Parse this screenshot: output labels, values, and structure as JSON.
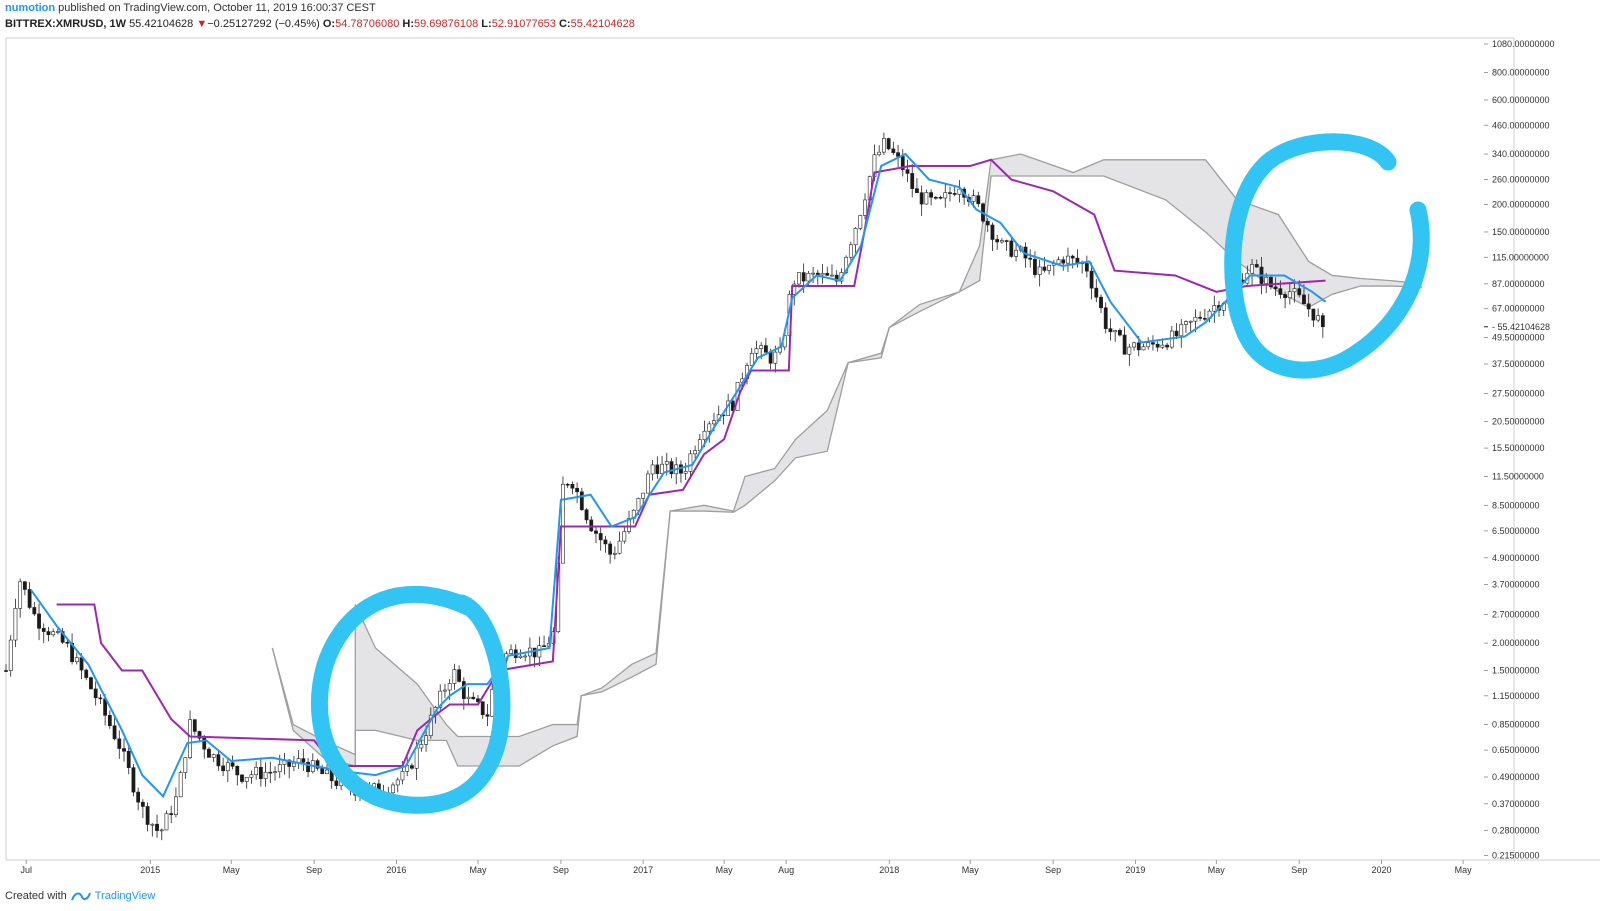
{
  "header": {
    "author": "numotion",
    "published_text": "published on TradingView.com, October 11, 2019 16:00:37 CEST",
    "symbol": "BITTREX:XMRUSD, 1W",
    "last": "55.42104628",
    "change_arrow": "▼",
    "change": "−0.25127292 (−0.45%)",
    "open_label": "O:",
    "open": "54.78706080",
    "high_label": "H:",
    "high": "59.69876108",
    "low_label": "L:",
    "low": "52.91077653",
    "close_label": "C:",
    "close": "55.42104628"
  },
  "footer": {
    "created_with": "Created with",
    "brand": "TradingView"
  },
  "colors": {
    "tenkan": "#2196f3",
    "kijun": "#9c27b0",
    "cloud_line": "#9e9e9e",
    "cloud_fill": "#e4e4e6",
    "marker": "#32c5f4",
    "bull": "#ffffff",
    "bear": "#1a1a1a"
  },
  "chart_data": {
    "type": "candlestick",
    "indicator": "Ichimoku Cloud",
    "scale": "log",
    "x_range": [
      "2014-06-01",
      "2020-06-01"
    ],
    "ylim": [
      0.205,
      1150
    ],
    "x_ticks": [
      {
        "date": "2014-07-01",
        "label": "Jul"
      },
      {
        "date": "2015-01-01",
        "label": "2015"
      },
      {
        "date": "2015-05-01",
        "label": "May"
      },
      {
        "date": "2015-09-01",
        "label": "Sep"
      },
      {
        "date": "2016-01-01",
        "label": "2016"
      },
      {
        "date": "2016-05-01",
        "label": "May"
      },
      {
        "date": "2016-09-01",
        "label": "Sep"
      },
      {
        "date": "2017-01-01",
        "label": "2017"
      },
      {
        "date": "2017-05-01",
        "label": "May"
      },
      {
        "date": "2017-08-01",
        "label": "Aug"
      },
      {
        "date": "2018-01-01",
        "label": "2018"
      },
      {
        "date": "2018-05-01",
        "label": "May"
      },
      {
        "date": "2018-09-01",
        "label": "Sep"
      },
      {
        "date": "2019-01-01",
        "label": "2019"
      },
      {
        "date": "2019-05-01",
        "label": "May"
      },
      {
        "date": "2019-09-01",
        "label": "Sep"
      },
      {
        "date": "2020-01-01",
        "label": "2020"
      },
      {
        "date": "2020-05-01",
        "label": "May"
      }
    ],
    "y_ticks": [
      {
        "value": 1080,
        "label": "1080.00000000"
      },
      {
        "value": 800,
        "label": "800.00000000"
      },
      {
        "value": 600,
        "label": "600.00000000"
      },
      {
        "value": 460,
        "label": "460.00000000"
      },
      {
        "value": 340,
        "label": "340.00000000"
      },
      {
        "value": 260,
        "label": "260.00000000"
      },
      {
        "value": 200,
        "label": "200.00000000"
      },
      {
        "value": 150,
        "label": "150.00000000"
      },
      {
        "value": 115,
        "label": "115.00000000"
      },
      {
        "value": 87,
        "label": "87.00000000"
      },
      {
        "value": 67,
        "label": "67.00000000"
      },
      {
        "value": 49.5,
        "label": "49.50000000"
      },
      {
        "value": 37.5,
        "label": "37.50000000"
      },
      {
        "value": 27.5,
        "label": "27.50000000"
      },
      {
        "value": 20.5,
        "label": "20.50000000"
      },
      {
        "value": 15.5,
        "label": "15.50000000"
      },
      {
        "value": 11.5,
        "label": "11.50000000"
      },
      {
        "value": 8.5,
        "label": "8.50000000"
      },
      {
        "value": 6.5,
        "label": "6.50000000"
      },
      {
        "value": 4.9,
        "label": "4.90000000"
      },
      {
        "value": 3.7,
        "label": "3.70000000"
      },
      {
        "value": 2.7,
        "label": "2.70000000"
      },
      {
        "value": 2.0,
        "label": "2.00000000"
      },
      {
        "value": 1.5,
        "label": "1.50000000"
      },
      {
        "value": 1.15,
        "label": "1.15000000"
      },
      {
        "value": 0.85,
        "label": "0.85000000"
      },
      {
        "value": 0.65,
        "label": "0.65000000"
      },
      {
        "value": 0.49,
        "label": "0.49000000"
      },
      {
        "value": 0.37,
        "label": "0.37000000"
      },
      {
        "value": 0.28,
        "label": "0.28000000"
      },
      {
        "value": 0.215,
        "label": "0.21500000"
      }
    ],
    "last_price_label": "55.42104628",
    "last_price": 55.42,
    "price_path": [
      [
        "2014-06-01",
        1.5
      ],
      [
        "2014-06-20",
        4.0
      ],
      [
        "2014-07-15",
        2.6
      ],
      [
        "2014-09-01",
        1.9
      ],
      [
        "2014-10-15",
        1.1
      ],
      [
        "2014-11-15",
        0.7
      ],
      [
        "2014-12-20",
        0.35
      ],
      [
        "2015-01-15",
        0.27
      ],
      [
        "2015-02-10",
        0.4
      ],
      [
        "2015-03-01",
        0.85
      ],
      [
        "2015-04-01",
        0.62
      ],
      [
        "2015-05-15",
        0.5
      ],
      [
        "2015-07-01",
        0.52
      ],
      [
        "2015-08-15",
        0.58
      ],
      [
        "2015-09-15",
        0.5
      ],
      [
        "2015-10-15",
        0.45
      ],
      [
        "2015-11-15",
        0.42
      ],
      [
        "2015-12-15",
        0.44
      ],
      [
        "2016-01-15",
        0.5
      ],
      [
        "2016-02-10",
        0.75
      ],
      [
        "2016-03-10",
        1.2
      ],
      [
        "2016-03-25",
        1.5
      ],
      [
        "2016-04-15",
        1.1
      ],
      [
        "2016-05-15",
        0.95
      ],
      [
        "2016-06-01",
        1.7
      ],
      [
        "2016-07-01",
        1.9
      ],
      [
        "2016-08-01",
        1.8
      ],
      [
        "2016-08-25",
        2.3
      ],
      [
        "2016-09-01",
        10.0
      ],
      [
        "2016-09-15",
        11.5
      ],
      [
        "2016-10-15",
        7.0
      ],
      [
        "2016-11-15",
        5.0
      ],
      [
        "2016-12-20",
        8.0
      ],
      [
        "2017-01-15",
        13.0
      ],
      [
        "2017-03-01",
        12.0
      ],
      [
        "2017-04-01",
        20.0
      ],
      [
        "2017-05-15",
        25.0
      ],
      [
        "2017-06-10",
        45.0
      ],
      [
        "2017-07-10",
        40.0
      ],
      [
        "2017-07-25",
        42.0
      ],
      [
        "2017-08-10",
        90.0
      ],
      [
        "2017-09-15",
        95.0
      ],
      [
        "2017-10-15",
        90.0
      ],
      [
        "2017-11-15",
        170.0
      ],
      [
        "2017-12-10",
        320.0
      ],
      [
        "2017-12-25",
        380.0
      ],
      [
        "2018-01-20",
        300.0
      ],
      [
        "2018-02-10",
        220.0
      ],
      [
        "2018-03-15",
        200.0
      ],
      [
        "2018-04-15",
        250.0
      ],
      [
        "2018-05-15",
        190.0
      ],
      [
        "2018-06-15",
        130.0
      ],
      [
        "2018-07-15",
        120.0
      ],
      [
        "2018-08-15",
        95.0
      ],
      [
        "2018-09-15",
        115.0
      ],
      [
        "2018-10-20",
        105.0
      ],
      [
        "2018-11-20",
        55.0
      ],
      [
        "2018-12-15",
        45.0
      ],
      [
        "2019-01-20",
        45.0
      ],
      [
        "2019-03-01",
        50.0
      ],
      [
        "2019-04-15",
        65.0
      ],
      [
        "2019-05-15",
        75.0
      ],
      [
        "2019-06-20",
        105.0
      ],
      [
        "2019-07-20",
        85.0
      ],
      [
        "2019-08-20",
        80.0
      ],
      [
        "2019-09-20",
        65.0
      ],
      [
        "2019-10-07",
        55.4
      ]
    ],
    "tenkan_sen": [
      [
        "2014-07-08",
        3.5
      ],
      [
        "2014-08-15",
        2.4
      ],
      [
        "2014-10-01",
        1.6
      ],
      [
        "2014-11-20",
        0.8
      ],
      [
        "2014-12-20",
        0.5
      ],
      [
        "2015-01-20",
        0.4
      ],
      [
        "2015-02-25",
        0.7
      ],
      [
        "2015-03-25",
        0.72
      ],
      [
        "2015-05-01",
        0.58
      ],
      [
        "2015-07-01",
        0.6
      ],
      [
        "2015-09-01",
        0.55
      ],
      [
        "2015-10-15",
        0.52
      ],
      [
        "2015-12-01",
        0.5
      ],
      [
        "2016-01-15",
        0.55
      ],
      [
        "2016-03-01",
        1.0
      ],
      [
        "2016-03-20",
        1.15
      ],
      [
        "2016-04-15",
        1.3
      ],
      [
        "2016-05-15",
        1.3
      ],
      [
        "2016-06-15",
        1.75
      ],
      [
        "2016-08-15",
        1.9
      ],
      [
        "2016-09-01",
        9.0
      ],
      [
        "2016-10-15",
        9.5
      ],
      [
        "2016-11-15",
        6.8
      ],
      [
        "2016-12-20",
        7.5
      ],
      [
        "2017-02-01",
        12.0
      ],
      [
        "2017-03-15",
        13.0
      ],
      [
        "2017-04-15",
        19.0
      ],
      [
        "2017-05-20",
        28.0
      ],
      [
        "2017-06-20",
        40.0
      ],
      [
        "2017-07-25",
        45.0
      ],
      [
        "2017-08-10",
        75.0
      ],
      [
        "2017-09-15",
        95.0
      ],
      [
        "2017-10-20",
        90.0
      ],
      [
        "2017-11-20",
        130.0
      ],
      [
        "2017-12-20",
        300.0
      ],
      [
        "2018-01-25",
        340.0
      ],
      [
        "2018-03-01",
        260.0
      ],
      [
        "2018-04-15",
        240.0
      ],
      [
        "2018-05-10",
        190.0
      ],
      [
        "2018-06-15",
        165.0
      ],
      [
        "2018-07-20",
        120.0
      ],
      [
        "2018-09-15",
        105.0
      ],
      [
        "2018-10-25",
        110.0
      ],
      [
        "2018-11-25",
        72.0
      ],
      [
        "2019-01-10",
        47.0
      ],
      [
        "2019-03-15",
        50.0
      ],
      [
        "2019-04-15",
        58.0
      ],
      [
        "2019-05-20",
        75.0
      ],
      [
        "2019-06-20",
        95.0
      ],
      [
        "2019-08-10",
        95.0
      ],
      [
        "2019-09-20",
        80.0
      ],
      [
        "2019-10-10",
        72.0
      ]
    ],
    "kijun_sen": [
      [
        "2014-08-15",
        3.0
      ],
      [
        "2014-10-10",
        3.0
      ],
      [
        "2014-10-20",
        2.0
      ],
      [
        "2014-11-20",
        1.5
      ],
      [
        "2014-12-20",
        1.5
      ],
      [
        "2015-02-01",
        0.9
      ],
      [
        "2015-03-01",
        0.75
      ],
      [
        "2015-09-01",
        0.72
      ],
      [
        "2015-10-01",
        0.55
      ],
      [
        "2016-01-10",
        0.55
      ],
      [
        "2016-02-01",
        0.8
      ],
      [
        "2016-03-01",
        0.95
      ],
      [
        "2016-03-20",
        1.05
      ],
      [
        "2016-05-01",
        1.05
      ],
      [
        "2016-06-01",
        1.5
      ],
      [
        "2016-08-20",
        1.65
      ],
      [
        "2016-09-01",
        6.8
      ],
      [
        "2016-12-20",
        6.8
      ],
      [
        "2017-01-10",
        9.5
      ],
      [
        "2017-03-01",
        10.0
      ],
      [
        "2017-04-01",
        14.5
      ],
      [
        "2017-05-01",
        17.0
      ],
      [
        "2017-05-25",
        28.0
      ],
      [
        "2017-06-10",
        35.0
      ],
      [
        "2017-08-05",
        35.0
      ],
      [
        "2017-08-10",
        85.0
      ],
      [
        "2017-11-10",
        85.0
      ],
      [
        "2017-11-25",
        150.0
      ],
      [
        "2017-12-10",
        280.0
      ],
      [
        "2018-02-01",
        300.0
      ],
      [
        "2018-05-01",
        300.0
      ],
      [
        "2018-06-01",
        320.0
      ],
      [
        "2018-07-01",
        260.0
      ],
      [
        "2018-09-01",
        230.0
      ],
      [
        "2018-11-01",
        180.0
      ],
      [
        "2018-12-01",
        100.0
      ],
      [
        "2019-03-01",
        95.0
      ],
      [
        "2019-05-01",
        80.0
      ],
      [
        "2019-06-15",
        85.0
      ],
      [
        "2019-10-10",
        90.0
      ]
    ],
    "cloud": [
      [
        "2015-07-01",
        1.9,
        1.9
      ],
      [
        "2015-08-01",
        0.85,
        0.8
      ],
      [
        "2015-09-15",
        0.72,
        0.6
      ],
      [
        "2015-11-01",
        0.62,
        0.55
      ],
      [
        "2015-11-01",
        3.0,
        0.8
      ],
      [
        "2015-12-01",
        1.9,
        0.8
      ],
      [
        "2016-02-01",
        1.3,
        0.72
      ],
      [
        "2016-03-15",
        0.85,
        0.72
      ],
      [
        "2016-04-01",
        0.75,
        0.55
      ],
      [
        "2016-07-01",
        0.75,
        0.55
      ],
      [
        "2016-08-20",
        0.85,
        0.68
      ],
      [
        "2016-09-25",
        0.85,
        0.75
      ],
      [
        "2016-10-01",
        1.15,
        1.15
      ],
      [
        "2016-11-01",
        1.25,
        1.2
      ],
      [
        "2016-12-15",
        1.6,
        1.4
      ],
      [
        "2017-01-20",
        1.8,
        1.6
      ],
      [
        "2017-02-10",
        8.0,
        8.0
      ],
      [
        "2017-04-01",
        8.5,
        8.0
      ],
      [
        "2017-05-15",
        8.0,
        7.9
      ],
      [
        "2017-06-01",
        11.5,
        8.5
      ],
      [
        "2017-07-15",
        12.5,
        11.0
      ],
      [
        "2017-08-15",
        17.0,
        14.0
      ],
      [
        "2017-10-01",
        23.0,
        15.0
      ],
      [
        "2017-11-01",
        38.0,
        38.0
      ],
      [
        "2017-12-20",
        42.0,
        40.0
      ],
      [
        "2018-01-01",
        55.0,
        55.0
      ],
      [
        "2018-02-15",
        70.0,
        65.0
      ],
      [
        "2018-04-15",
        80.0,
        80.0
      ],
      [
        "2018-05-15",
        130.0,
        90.0
      ],
      [
        "2018-06-01",
        320.0,
        270.0
      ],
      [
        "2018-07-15",
        340.0,
        270.0
      ],
      [
        "2018-10-01",
        280.0,
        270.0
      ],
      [
        "2018-11-15",
        320.0,
        270.0
      ],
      [
        "2019-02-15",
        320.0,
        210.0
      ],
      [
        "2019-04-15",
        320.0,
        150.0
      ],
      [
        "2019-06-01",
        210.0,
        110.0
      ],
      [
        "2019-08-01",
        180.0,
        80.0
      ],
      [
        "2019-09-15",
        110.0,
        68.0
      ],
      [
        "2019-10-20",
        95.0,
        78.0
      ],
      [
        "2019-12-01",
        92.0,
        85.0
      ],
      [
        "2020-01-15",
        90.0,
        85.0
      ],
      [
        "2020-03-01",
        87.0,
        84.0
      ]
    ]
  }
}
